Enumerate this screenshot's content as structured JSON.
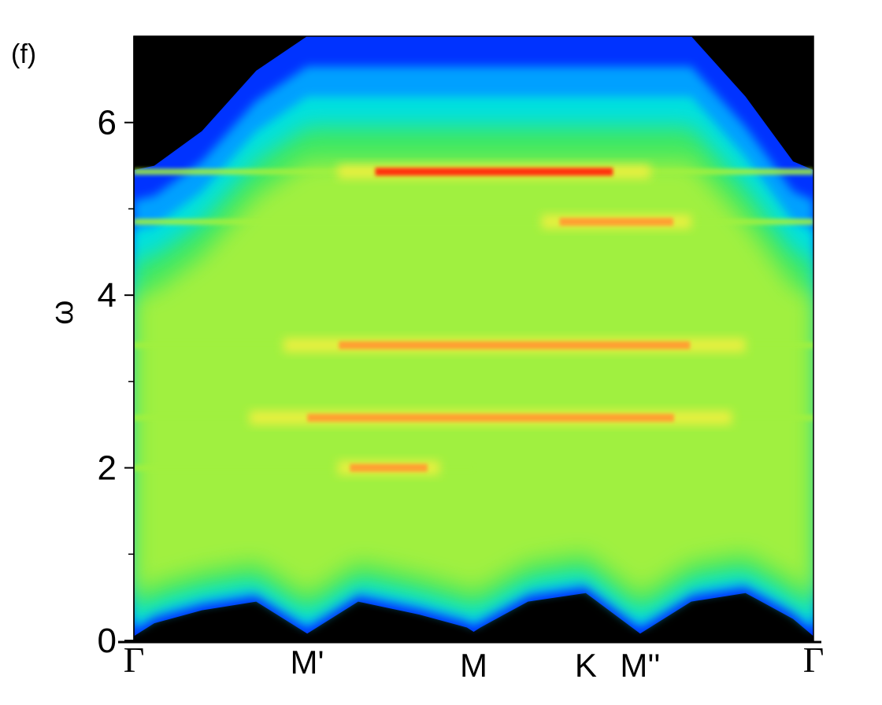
{
  "chart_data": {
    "type": "heatmap",
    "panel_label": "(f)",
    "ylabel": "ω",
    "ylim": [
      0,
      7
    ],
    "y_ticks_major": [
      0,
      2,
      4,
      6
    ],
    "y_ticks_minor": [
      1,
      3,
      5
    ],
    "x_points": [
      {
        "label": "Γ",
        "x": 0.0
      },
      {
        "label": "M'",
        "x": 0.255
      },
      {
        "label": "M",
        "x": 0.5
      },
      {
        "label": "K",
        "x": 0.665
      },
      {
        "label": "M''",
        "x": 0.745
      },
      {
        "label": "Γ",
        "x": 1.0
      }
    ],
    "colormap": [
      "#000000",
      "#0033ff",
      "#00a0ff",
      "#00e0e0",
      "#40e860",
      "#a0f040",
      "#f0f040",
      "#ffa030",
      "#ff3010"
    ],
    "spectrum_edges": {
      "x": [
        0,
        0.03,
        0.1,
        0.18,
        0.255,
        0.33,
        0.42,
        0.49,
        0.5,
        0.51,
        0.58,
        0.665,
        0.745,
        0.82,
        0.9,
        0.97,
        1.0
      ],
      "lower_omega": [
        0.05,
        0.2,
        0.35,
        0.45,
        0.08,
        0.45,
        0.3,
        0.15,
        0.1,
        0.15,
        0.45,
        0.55,
        0.08,
        0.45,
        0.55,
        0.25,
        0.05
      ],
      "upper_omega": [
        5.45,
        5.5,
        5.9,
        6.6,
        7.0,
        7.0,
        7.0,
        7.0,
        7.0,
        7.0,
        7.0,
        7.0,
        7.0,
        7.0,
        6.3,
        5.55,
        5.45
      ]
    },
    "flat_bands": [
      {
        "omega": 5.43,
        "x_range": [
          0.0,
          1.0
        ],
        "peak_range": [
          0.3,
          0.76
        ],
        "peak_intensity": 1.0
      },
      {
        "omega": 4.85,
        "x_range": [
          0.0,
          1.0
        ],
        "peak_range": [
          0.6,
          0.82
        ],
        "peak_intensity": 0.85
      },
      {
        "omega": 3.42,
        "x_range": [
          0.0,
          1.0
        ],
        "peak_range": [
          0.22,
          0.9
        ],
        "peak_intensity": 0.78
      },
      {
        "omega": 2.58,
        "x_range": [
          0.0,
          1.0
        ],
        "peak_range": [
          0.17,
          0.88
        ],
        "peak_intensity": 0.8
      },
      {
        "omega": 2.0,
        "x_range": [
          0.0,
          0.5
        ],
        "peak_range": [
          0.3,
          0.45
        ],
        "peak_intensity": 0.75
      }
    ]
  }
}
